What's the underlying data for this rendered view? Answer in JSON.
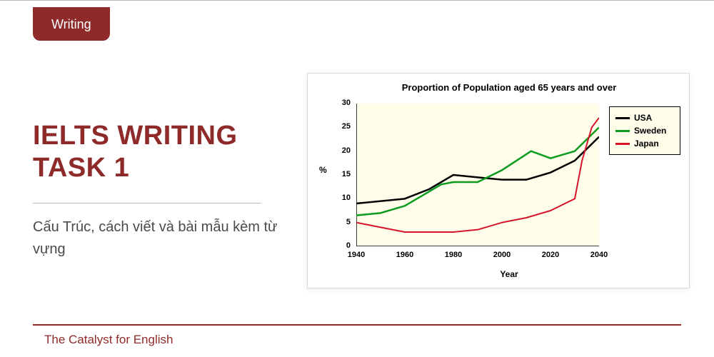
{
  "badge": {
    "label": "Writing",
    "bg": "#8f2a2a",
    "color": "#ffffff"
  },
  "title": {
    "text": "IELTS WRITING TASK 1",
    "color": "#8f2a2a"
  },
  "subtitle": "Cấu Trúc, cách viết và bài mẫu kèm từ vựng",
  "footer": {
    "text": "The Catalyst for English",
    "color": "#8f2a2a",
    "line_color": "#8f2a2a"
  },
  "chart": {
    "type": "line",
    "title": "Proportion of Population aged 65 years and over",
    "plot_bg": "#fefdea",
    "axis_color": "#000000",
    "tick_font_size": 11,
    "x": {
      "label": "Year",
      "min": 1940,
      "max": 2040,
      "ticks": [
        1940,
        1960,
        1980,
        2000,
        2020,
        2040
      ]
    },
    "y": {
      "label": "%",
      "min": 0,
      "max": 30,
      "ticks": [
        0,
        5,
        10,
        15,
        20,
        25,
        30
      ]
    },
    "series": [
      {
        "name": "USA",
        "color": "#000000",
        "width": 2.5,
        "points": [
          [
            1940,
            9
          ],
          [
            1960,
            10
          ],
          [
            1970,
            12
          ],
          [
            1980,
            15
          ],
          [
            1990,
            14.5
          ],
          [
            2000,
            14
          ],
          [
            2010,
            14
          ],
          [
            2020,
            15.5
          ],
          [
            2030,
            18
          ],
          [
            2040,
            23
          ]
        ]
      },
      {
        "name": "Sweden",
        "color": "#0b9b1f",
        "width": 2.5,
        "points": [
          [
            1940,
            6.5
          ],
          [
            1950,
            7
          ],
          [
            1960,
            8.5
          ],
          [
            1975,
            13
          ],
          [
            1980,
            13.5
          ],
          [
            1990,
            13.5
          ],
          [
            2000,
            16
          ],
          [
            2012,
            20
          ],
          [
            2020,
            18.5
          ],
          [
            2030,
            20
          ],
          [
            2040,
            25
          ]
        ]
      },
      {
        "name": "Japan",
        "color": "#d4152a",
        "width": 2,
        "points": [
          [
            1940,
            5
          ],
          [
            1950,
            4
          ],
          [
            1960,
            3
          ],
          [
            1980,
            3
          ],
          [
            1990,
            3.5
          ],
          [
            2000,
            5
          ],
          [
            2010,
            6
          ],
          [
            2020,
            7.5
          ],
          [
            2030,
            10
          ],
          [
            2033,
            18
          ],
          [
            2037,
            25
          ],
          [
            2040,
            27
          ]
        ]
      }
    ],
    "legend": {
      "items": [
        "USA",
        "Sweden",
        "Japan"
      ],
      "colors": [
        "#000000",
        "#0b9b1f",
        "#d4152a"
      ]
    }
  }
}
